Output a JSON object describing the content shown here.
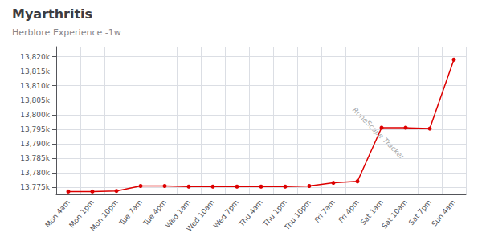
{
  "chart_data": {
    "type": "line",
    "title": "Myarthritis",
    "subtitle": "Herblore Experience -1w",
    "annotation": "RuneScape Tracker",
    "categories": [
      "Mon 4am",
      "Mon 1pm",
      "Mon 10pm",
      "Tue 7am",
      "Tue 4pm",
      "Wed 1am",
      "Wed 10am",
      "Wed 7pm",
      "Thu 4am",
      "Thu 1pm",
      "Thu 10pm",
      "Fri 7am",
      "Fri 4pm",
      "Sat 1am",
      "Sat 10am",
      "Sat 7pm",
      "Sun 4am"
    ],
    "values": [
      13773500,
      13773500,
      13773700,
      13775400,
      13775400,
      13775200,
      13775200,
      13775200,
      13775200,
      13775200,
      13775400,
      13776500,
      13777000,
      13795500,
      13795500,
      13795200,
      13819000
    ],
    "color": "#dd0000",
    "marker": "circle",
    "ylim": [
      13772500,
      13823500
    ],
    "yticks": [
      {
        "value": 13775000,
        "label": "13,775k"
      },
      {
        "value": 13780000,
        "label": "13,780k"
      },
      {
        "value": 13785000,
        "label": "13,785k"
      },
      {
        "value": 13790000,
        "label": "13,790k"
      },
      {
        "value": 13795000,
        "label": "13,795k"
      },
      {
        "value": 13800000,
        "label": "13,800k"
      },
      {
        "value": 13805000,
        "label": "13,805k"
      },
      {
        "value": 13810000,
        "label": "13,810k"
      },
      {
        "value": 13815000,
        "label": "13,815k"
      },
      {
        "value": 13820000,
        "label": "13,820k"
      }
    ],
    "grid": true
  }
}
